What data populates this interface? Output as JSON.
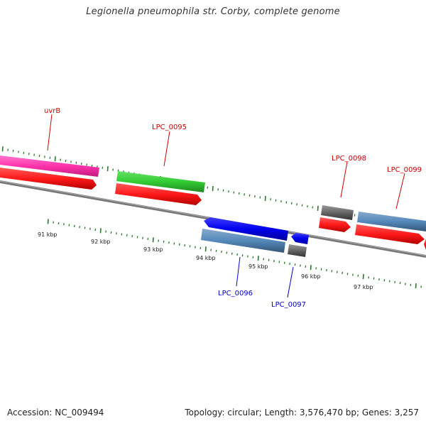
{
  "title": "Legionella pneumophila str. Corby, complete genome",
  "footer": {
    "accession": "Accession: NC_009494",
    "summary": "Topology: circular; Length: 3,576,470 bp; Genes: 3,257"
  },
  "colors": {
    "backbone": "#777777",
    "ticks": "#2a7a2a",
    "forward_label": "#cc0000",
    "reverse_label": "#0000cc",
    "cds_red": "#ff1a1a",
    "gene_pink": "#ff33aa",
    "gene_green": "#33cc33",
    "gene_blue": "#0000ff",
    "gene_steel": "#5588bb",
    "gene_gray": "#666666"
  },
  "scale": {
    "unit_label": "kbp",
    "labels": [
      "91 kbp",
      "92 kbp",
      "93 kbp",
      "94 kbp",
      "95 kbp",
      "96 kbp",
      "97 kbp"
    ]
  },
  "gene_labels": {
    "uvrB": "uvrB",
    "LPC_0095": "LPC_0095",
    "LPC_0096": "LPC_0096",
    "LPC_0097": "LPC_0097",
    "LPC_0098": "LPC_0098",
    "LPC_0099": "LPC_0099"
  }
}
